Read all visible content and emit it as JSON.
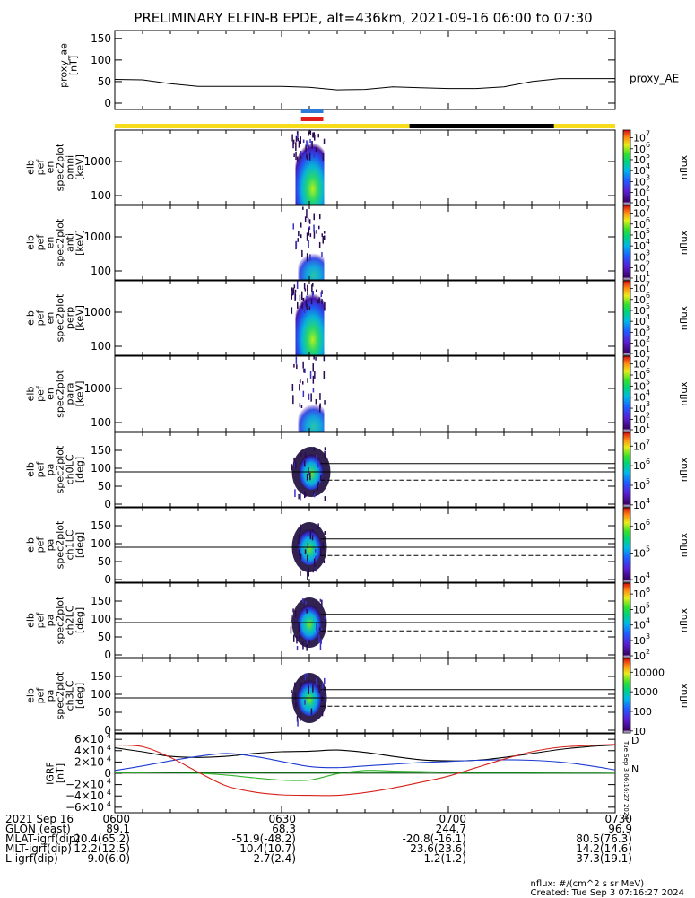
{
  "title": "PRELIMINARY ELFIN-B EPDE, alt=436km, 2021-09-16 06:00 to 07:30",
  "chart_data": [
    {
      "id": "proxy_ae",
      "type": "line",
      "ylabel_lines": [
        "proxy_ae",
        "[nT]"
      ],
      "y_ticks": [
        "0",
        "50",
        "100",
        "150"
      ],
      "ylim": [
        0,
        160
      ],
      "legend": "proxy_AE",
      "x_minutes": [
        0,
        5,
        10,
        15,
        20,
        25,
        30,
        35,
        40,
        45,
        50,
        55,
        60,
        65,
        70,
        75,
        80,
        85,
        90
      ],
      "values": [
        55,
        54,
        45,
        39,
        39,
        39,
        39,
        37,
        31,
        32,
        38,
        36,
        34,
        34,
        38,
        50,
        57,
        57,
        57
      ]
    },
    {
      "id": "flag_bars",
      "type": "timeline",
      "segments": [
        {
          "from": 0,
          "to": 53,
          "color": "#f7dc1b"
        },
        {
          "from": 53,
          "to": 79,
          "color": "#000000"
        },
        {
          "from": 79,
          "to": 90,
          "color": "#f7dc1b"
        }
      ],
      "markers": [
        {
          "from": 33.5,
          "to": 37.5,
          "color": "#2d7bd8"
        },
        {
          "from": 33.5,
          "to": 37.5,
          "color": "#e21d1d"
        }
      ]
    },
    {
      "id": "elb_pef_en_omni",
      "type": "heatmap",
      "ylabel_lines": [
        "elb",
        "pef",
        "en",
        "spec2plot",
        "omni",
        "[keV]"
      ],
      "y_ticks": [
        "100",
        "1000"
      ],
      "yscale": "log",
      "colorbar": {
        "label": "nflux",
        "ticks": [
          "10",
          "10",
          "10",
          "10",
          "10",
          "10",
          "10"
        ],
        "exponents": [
          "1",
          "2",
          "3",
          "4",
          "5",
          "6",
          "7"
        ]
      },
      "time_range_minutes": [
        32.5,
        37.5
      ]
    },
    {
      "id": "elb_pef_en_anti",
      "type": "heatmap",
      "ylabel_lines": [
        "elb",
        "pef",
        "en",
        "spec2plot",
        "anti",
        "[keV]"
      ],
      "y_ticks": [
        "100",
        "1000"
      ],
      "yscale": "log",
      "colorbar": {
        "label": "nflux",
        "ticks": [
          "10",
          "10",
          "10",
          "10",
          "10",
          "10",
          "10"
        ],
        "exponents": [
          "1",
          "2",
          "3",
          "4",
          "5",
          "6",
          "7"
        ]
      },
      "time_range_minutes": [
        32.5,
        37.5
      ]
    },
    {
      "id": "elb_pef_en_perp",
      "type": "heatmap",
      "ylabel_lines": [
        "elb",
        "pef",
        "en",
        "spec2plot",
        "perp",
        "[keV]"
      ],
      "y_ticks": [
        "100",
        "1000"
      ],
      "yscale": "log",
      "colorbar": {
        "label": "nflux",
        "ticks": [
          "10",
          "10",
          "10",
          "10",
          "10",
          "10",
          "10"
        ],
        "exponents": [
          "1",
          "2",
          "3",
          "4",
          "5",
          "6",
          "7"
        ]
      },
      "time_range_minutes": [
        32.5,
        37.5
      ]
    },
    {
      "id": "elb_pef_en_para",
      "type": "heatmap",
      "ylabel_lines": [
        "elb",
        "pef",
        "en",
        "spec2plot",
        "para",
        "[keV]"
      ],
      "y_ticks": [
        "100",
        "1000"
      ],
      "yscale": "log",
      "colorbar": {
        "label": "nflux",
        "ticks": [
          "10",
          "10",
          "10",
          "10",
          "10",
          "10",
          "10"
        ],
        "exponents": [
          "1",
          "2",
          "3",
          "4",
          "5",
          "6",
          "7"
        ]
      },
      "time_range_minutes": [
        32.5,
        37.5
      ]
    },
    {
      "id": "elb_pef_pa_ch0LC",
      "type": "heatmap",
      "ylabel_lines": [
        "elb",
        "pef",
        "pa",
        "spec2plot",
        "ch0LC",
        "[deg]"
      ],
      "y_ticks": [
        "0",
        "50",
        "100",
        "150"
      ],
      "ylim": [
        0,
        180
      ],
      "colorbar": {
        "label": "nflux",
        "ticks": [
          "10",
          "10",
          "10",
          "10"
        ],
        "exponents": [
          "4",
          "5",
          "6",
          "7"
        ]
      },
      "time_range_minutes": [
        32.5,
        37.5
      ],
      "lines": {
        "solid": [
          90,
          113
        ],
        "dashed": 67
      }
    },
    {
      "id": "elb_pef_pa_ch1LC",
      "type": "heatmap",
      "ylabel_lines": [
        "elb",
        "pef",
        "pa",
        "spec2plot",
        "ch1LC",
        "[deg]"
      ],
      "y_ticks": [
        "0",
        "50",
        "100",
        "150"
      ],
      "ylim": [
        0,
        180
      ],
      "colorbar": {
        "label": "nflux",
        "ticks": [
          "10",
          "10",
          "10"
        ],
        "exponents": [
          "4",
          "5",
          "6"
        ]
      },
      "time_range_minutes": [
        32.5,
        37.5
      ],
      "lines": {
        "solid": [
          90,
          113
        ],
        "dashed": 67
      }
    },
    {
      "id": "elb_pef_pa_ch2LC",
      "type": "heatmap",
      "ylabel_lines": [
        "elb",
        "pef",
        "pa",
        "spec2plot",
        "ch2LC",
        "[deg]"
      ],
      "y_ticks": [
        "0",
        "50",
        "100",
        "150"
      ],
      "ylim": [
        0,
        180
      ],
      "colorbar": {
        "label": "nflux",
        "ticks": [
          "10",
          "10",
          "10",
          "10",
          "10"
        ],
        "exponents": [
          "2",
          "3",
          "4",
          "5",
          "6"
        ]
      },
      "time_range_minutes": [
        32.5,
        37.5
      ],
      "lines": {
        "solid": [
          90,
          113
        ],
        "dashed": 67
      }
    },
    {
      "id": "elb_pef_pa_ch3LC",
      "type": "heatmap",
      "ylabel_lines": [
        "elb",
        "pef",
        "pa",
        "spec2plot",
        "ch3LC",
        "[deg]"
      ],
      "y_ticks": [
        "0",
        "50",
        "100",
        "150"
      ],
      "ylim": [
        0,
        180
      ],
      "colorbar": {
        "label": "nflux",
        "ticks": [
          "10",
          "100",
          "1000",
          "10000"
        ],
        "exponents": [
          "",
          "",
          "",
          ""
        ]
      },
      "time_range_minutes": [
        32.5,
        37.5
      ],
      "lines": {
        "solid": [
          90,
          113
        ],
        "dashed": 67
      }
    },
    {
      "id": "igrf",
      "type": "line",
      "ylabel_lines": [
        "IGRF",
        "[nT]"
      ],
      "y_ticks": [
        "0",
        "2×10",
        "4×10",
        "6×10",
        "−2×10",
        "−4×10",
        "−6×10"
      ],
      "y_tick_values": [
        0,
        20000,
        40000,
        60000,
        -20000,
        -40000,
        -60000
      ],
      "y_tick_exponent": "4",
      "ylim": [
        -65000,
        65000
      ],
      "legend": [
        "D",
        "N"
      ],
      "side_note": "Tue Sep 3 06:16:27 2024",
      "x_minutes": [
        0,
        5,
        10,
        15,
        20,
        25,
        30,
        35,
        40,
        45,
        50,
        55,
        60,
        65,
        70,
        75,
        80,
        85,
        90
      ],
      "series": [
        {
          "color": "#000000",
          "values": [
            45000,
            38000,
            30000,
            28000,
            30000,
            35000,
            38000,
            39000,
            41000,
            37000,
            30000,
            24000,
            22000,
            23000,
            28000,
            35000,
            42000,
            47000,
            50000
          ]
        },
        {
          "color": "#1e3ccf",
          "values": [
            5000,
            13000,
            22000,
            30000,
            35000,
            30000,
            21000,
            12000,
            10000,
            13000,
            16000,
            19000,
            21000,
            23000,
            24000,
            23000,
            20000,
            14000,
            6000
          ]
        },
        {
          "color": "#2fb52a",
          "values": [
            1000,
            1000,
            1000,
            0,
            -3000,
            -8000,
            -12000,
            -12000,
            -1000,
            5000,
            4000,
            3000,
            2000,
            1500,
            1000,
            700,
            500,
            300,
            200
          ]
        },
        {
          "color": "#0a6b14",
          "values": [
            2000,
            2000,
            1000,
            1000,
            1000,
            800,
            700,
            600,
            600,
            500,
            500,
            400,
            400,
            300,
            300,
            200,
            200,
            100,
            0
          ]
        },
        {
          "color": "#d8211b",
          "values": [
            50000,
            47000,
            28000,
            2000,
            -22000,
            -33000,
            -38000,
            -39000,
            -39000,
            -34000,
            -26000,
            -16000,
            -5000,
            10000,
            25000,
            38000,
            46000,
            49000,
            51000
          ]
        }
      ]
    }
  ],
  "footer": {
    "date_label": "2021 Sep 16",
    "times": [
      "0600",
      "0630",
      "0700",
      "0730"
    ],
    "rows": [
      {
        "label": "GLON (east)",
        "values": [
          "89.1",
          "68.3",
          "244.7",
          "96.9"
        ]
      },
      {
        "label": "MLAT-igrf(dip)",
        "values": [
          "20.4(65.2)",
          "-51.9(-48.2)",
          "-20.8(-16.1)",
          "80.5(76.3)"
        ]
      },
      {
        "label": "MLT-igrf(dip)",
        "values": [
          "12.2(12.5)",
          "10.4(10.7)",
          "23.6(23.6)",
          "14.2(14.6)"
        ]
      },
      {
        "label": "L-igrf(dip)",
        "values": [
          "9.0(6.0)",
          "2.7(2.4)",
          "1.2(1.2)",
          "37.3(19.1)"
        ]
      }
    ],
    "units_note": "nflux: #/(cm^2 s sr MeV)",
    "created": "Created: Tue Sep  3 07:16:27 2024"
  }
}
